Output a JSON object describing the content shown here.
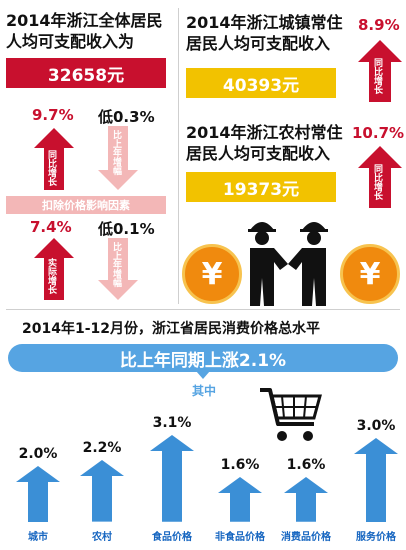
{
  "colors": {
    "red": "#c8102e",
    "yellow": "#f2c200",
    "blue": "#3b8fd6",
    "pale_red": "#f3b7b7",
    "banner": "#56a4e2"
  },
  "left": {
    "title": "2014年浙江全体居民人均可支配收入为",
    "value": "32658元",
    "nominal_growth": "9.7%",
    "nominal_growth_label": "同比增长",
    "compared": "低0.3%",
    "compared_label": "比上年增幅",
    "deduction_label": "扣除价格影响因素",
    "real_growth": "7.4%",
    "real_growth_label": "实际增长",
    "real_compared": "低0.1%",
    "real_compared_label": "比上年增幅"
  },
  "right": {
    "urban_title": "2014年浙江城镇常住居民人均可支配收入",
    "urban_growth": "8.9%",
    "urban_growth_label": "同比增长",
    "urban_value": "40393元",
    "rural_title": "2014年浙江农村常住居民人均可支配收入",
    "rural_growth": "10.7%",
    "rural_growth_label": "同比增长",
    "rural_value": "19373元",
    "yuan_symbol": "¥"
  },
  "bottom": {
    "title": "2014年1-12月份，浙江省居民消费价格总水平",
    "banner": "比上年同期上涨2.1%",
    "among": "其中"
  },
  "chart_data": {
    "type": "bar",
    "categories": [
      "城市",
      "农村",
      "食品价格",
      "非食品价格",
      "消费品价格",
      "服务价格"
    ],
    "values": [
      2.0,
      2.2,
      3.1,
      1.6,
      1.6,
      3.0
    ],
    "labels": [
      "2.0%",
      "2.2%",
      "3.1%",
      "1.6%",
      "1.6%",
      "3.0%"
    ]
  }
}
